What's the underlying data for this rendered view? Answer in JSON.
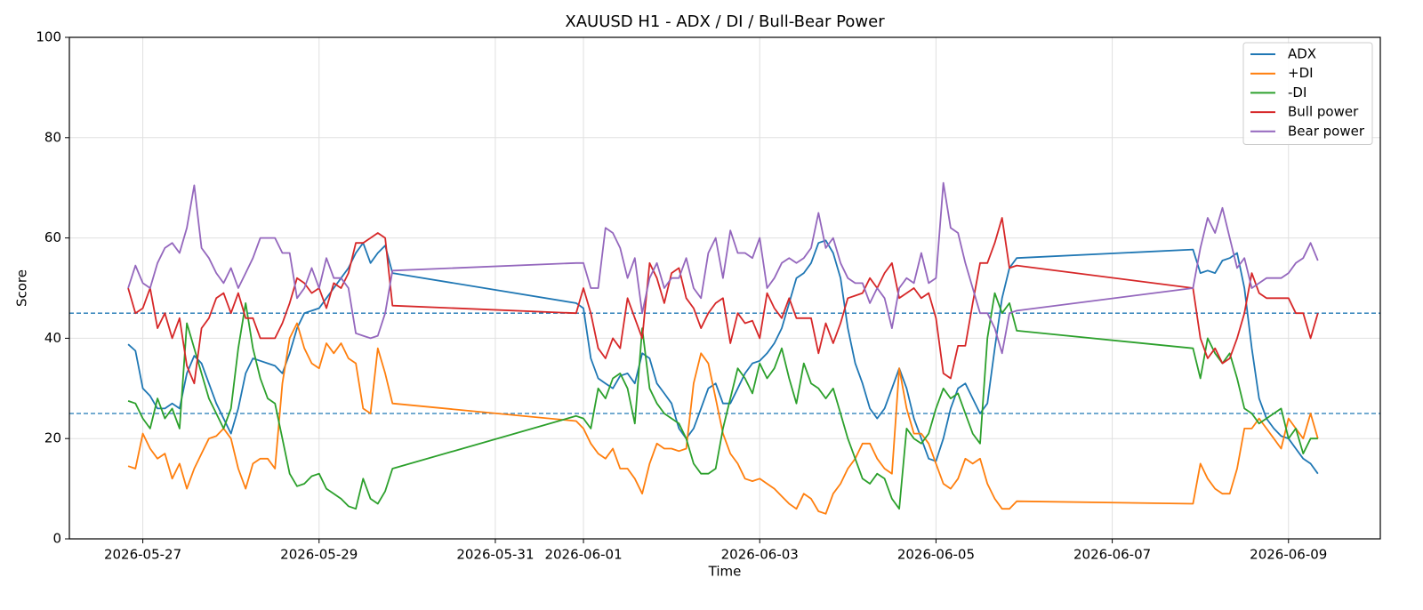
{
  "chart_data": {
    "type": "line",
    "title": "XAUUSD H1 - ADX / DI / Bull-Bear Power",
    "xlabel": "Time",
    "ylabel": "Score",
    "ylim": [
      0,
      100
    ],
    "yticks": [
      0,
      20,
      40,
      60,
      80,
      100
    ],
    "xlim": [
      "2026-05-26 04:00",
      "2026-06-10 01:00"
    ],
    "xticks": [
      "2026-05-27",
      "2026-05-29",
      "2026-05-31",
      "2026-06-01",
      "2026-06-03",
      "2026-06-05",
      "2026-06-07",
      "2026-06-09"
    ],
    "grid": true,
    "legend": "upper right",
    "hlines": [
      45,
      25
    ],
    "hline_color": "#1f77b4",
    "x": [
      "2026-05-26 20:00",
      "2026-05-26 22:00",
      "2026-05-27 00:00",
      "2026-05-27 02:00",
      "2026-05-27 04:00",
      "2026-05-27 06:00",
      "2026-05-27 08:00",
      "2026-05-27 10:00",
      "2026-05-27 12:00",
      "2026-05-27 14:00",
      "2026-05-27 16:00",
      "2026-05-27 18:00",
      "2026-05-27 20:00",
      "2026-05-27 22:00",
      "2026-05-28 00:00",
      "2026-05-28 02:00",
      "2026-05-28 04:00",
      "2026-05-28 06:00",
      "2026-05-28 08:00",
      "2026-05-28 10:00",
      "2026-05-28 12:00",
      "2026-05-28 14:00",
      "2026-05-28 16:00",
      "2026-05-28 18:00",
      "2026-05-28 20:00",
      "2026-05-28 22:00",
      "2026-05-29 00:00",
      "2026-05-29 02:00",
      "2026-05-29 04:00",
      "2026-05-29 06:00",
      "2026-05-29 08:00",
      "2026-05-29 10:00",
      "2026-05-29 12:00",
      "2026-05-29 14:00",
      "2026-05-29 16:00",
      "2026-05-29 18:00",
      "2026-05-29 20:00",
      "2026-05-31 22:00",
      "2026-06-01 00:00",
      "2026-06-01 02:00",
      "2026-06-01 04:00",
      "2026-06-01 06:00",
      "2026-06-01 08:00",
      "2026-06-01 10:00",
      "2026-06-01 12:00",
      "2026-06-01 14:00",
      "2026-06-01 16:00",
      "2026-06-01 18:00",
      "2026-06-01 20:00",
      "2026-06-01 22:00",
      "2026-06-02 00:00",
      "2026-06-02 02:00",
      "2026-06-02 04:00",
      "2026-06-02 06:00",
      "2026-06-02 08:00",
      "2026-06-02 10:00",
      "2026-06-02 12:00",
      "2026-06-02 14:00",
      "2026-06-02 16:00",
      "2026-06-02 18:00",
      "2026-06-02 20:00",
      "2026-06-02 22:00",
      "2026-06-03 00:00",
      "2026-06-03 02:00",
      "2026-06-03 04:00",
      "2026-06-03 06:00",
      "2026-06-03 08:00",
      "2026-06-03 10:00",
      "2026-06-03 12:00",
      "2026-06-03 14:00",
      "2026-06-03 16:00",
      "2026-06-03 18:00",
      "2026-06-03 20:00",
      "2026-06-03 22:00",
      "2026-06-04 00:00",
      "2026-06-04 02:00",
      "2026-06-04 04:00",
      "2026-06-04 06:00",
      "2026-06-04 08:00",
      "2026-06-04 10:00",
      "2026-06-04 12:00",
      "2026-06-04 14:00",
      "2026-06-04 16:00",
      "2026-06-04 18:00",
      "2026-06-04 20:00",
      "2026-06-04 22:00",
      "2026-06-05 00:00",
      "2026-06-05 02:00",
      "2026-06-05 04:00",
      "2026-06-05 06:00",
      "2026-06-05 08:00",
      "2026-06-05 10:00",
      "2026-06-05 12:00",
      "2026-06-05 14:00",
      "2026-06-05 16:00",
      "2026-06-05 18:00",
      "2026-06-05 20:00",
      "2026-06-05 22:00",
      "2026-06-07 22:00",
      "2026-06-08 00:00",
      "2026-06-08 02:00",
      "2026-06-08 04:00",
      "2026-06-08 06:00",
      "2026-06-08 08:00",
      "2026-06-08 10:00",
      "2026-06-08 12:00",
      "2026-06-08 14:00",
      "2026-06-08 16:00",
      "2026-06-08 18:00",
      "2026-06-08 20:00",
      "2026-06-08 22:00",
      "2026-06-09 00:00",
      "2026-06-09 02:00",
      "2026-06-09 04:00",
      "2026-06-09 06:00",
      "2026-06-09 08:00"
    ],
    "series": [
      {
        "name": "ADX",
        "color": "#1f77b4",
        "values": [
          38.8,
          37.5,
          30,
          28.5,
          26,
          26,
          27,
          26,
          33,
          36.5,
          35,
          31,
          27,
          24,
          21,
          26,
          33,
          36,
          35.5,
          35,
          34.5,
          33,
          37,
          42,
          45,
          45.5,
          46,
          48,
          50,
          52,
          54,
          57,
          59,
          55,
          57,
          58.5,
          53,
          47,
          46,
          36,
          32,
          31,
          30,
          32.5,
          33,
          31,
          37,
          36,
          31,
          29,
          27,
          22,
          20,
          22,
          26,
          30,
          31,
          27,
          27,
          30,
          33,
          35,
          35.5,
          37,
          39,
          42,
          47,
          52,
          53,
          55,
          59,
          59.5,
          57,
          52,
          42,
          35,
          31,
          26,
          24,
          26,
          30,
          34,
          30,
          24,
          20,
          16,
          15.5,
          20,
          26,
          30,
          31,
          28,
          25,
          27,
          38,
          48,
          54,
          56,
          57.7,
          53,
          53.5,
          53,
          55.5,
          56,
          57,
          50,
          38,
          28,
          24,
          22,
          20.5,
          20,
          18,
          16,
          15,
          13
        ]
      },
      {
        "name": "+DI",
        "color": "#ff7f0e",
        "values": [
          14.5,
          14,
          21,
          18,
          16,
          17,
          12,
          15,
          10,
          14,
          17,
          20,
          20.5,
          22,
          20,
          14,
          10,
          15,
          16,
          16,
          14,
          31,
          40,
          43,
          38,
          35,
          34,
          39,
          37,
          39,
          36,
          35,
          26,
          25,
          38,
          33,
          27,
          23.5,
          22,
          19,
          17,
          16,
          18,
          14,
          14,
          12,
          9,
          15,
          19,
          18,
          18,
          17.5,
          18,
          31,
          37,
          35,
          28,
          21,
          17,
          15,
          12,
          11.5,
          12,
          11,
          10,
          8.5,
          7,
          6,
          9,
          8,
          5.5,
          5,
          9,
          11,
          14,
          16,
          19,
          19,
          16,
          14,
          13,
          34,
          26,
          21,
          21,
          19,
          15,
          11,
          10,
          12,
          16,
          15,
          16,
          11,
          8,
          6,
          6,
          7.5,
          7,
          15,
          12,
          10,
          9,
          9,
          14,
          22,
          22,
          24,
          22,
          20,
          18,
          24,
          22,
          20,
          25,
          20
        ]
      },
      {
        "name": "-DI",
        "color": "#2ca02c",
        "values": [
          27.5,
          27,
          24,
          22,
          28,
          24,
          26,
          22,
          43,
          38,
          33,
          28,
          25,
          22,
          26,
          38,
          47,
          38,
          32,
          28,
          27,
          20,
          13,
          10.5,
          11,
          12.5,
          13,
          10,
          9,
          8,
          6.5,
          6,
          12,
          8,
          7,
          9.5,
          14,
          24.5,
          24,
          22,
          30,
          28,
          32,
          33,
          30,
          23,
          42,
          30,
          27,
          25,
          24,
          23,
          20,
          15,
          13,
          13,
          14,
          22,
          28,
          34,
          32,
          29,
          35,
          32,
          34,
          38,
          32,
          27,
          35,
          31,
          30,
          28,
          30,
          25,
          20,
          16,
          12,
          11,
          13,
          12,
          8,
          6,
          22,
          20,
          19,
          21,
          26,
          30,
          28,
          29,
          25,
          21,
          19,
          40,
          49,
          45,
          47,
          41.5,
          38,
          32,
          40,
          37,
          35,
          37,
          32,
          26,
          25,
          23,
          24,
          25,
          26,
          20,
          22,
          17,
          20,
          20
        ]
      },
      {
        "name": "Bull power",
        "color": "#d62728",
        "values": [
          50,
          45,
          46,
          50,
          42,
          45,
          40,
          44,
          34.5,
          31,
          42,
          44,
          48,
          49,
          45,
          49,
          44,
          44,
          40,
          40,
          40,
          43,
          47,
          52,
          51,
          49,
          50,
          46,
          51,
          50,
          53,
          59,
          59,
          60,
          61,
          60,
          46.5,
          45,
          50,
          45,
          38,
          36,
          40,
          38,
          48,
          44,
          40,
          55,
          52,
          47,
          53,
          54,
          48,
          46,
          42,
          45,
          47,
          48,
          39,
          45,
          43,
          43.5,
          40,
          49,
          46,
          44,
          48,
          44,
          44,
          44,
          37,
          43,
          39,
          43,
          48,
          48.5,
          49,
          52,
          50,
          53,
          55,
          48,
          49,
          50,
          48,
          49,
          44,
          33,
          32,
          38.5,
          38.5,
          47,
          55,
          55,
          59,
          64,
          54,
          54.5,
          50,
          40,
          36,
          38,
          35,
          36,
          40,
          45,
          53,
          49,
          48,
          48,
          48,
          48,
          45,
          45,
          40,
          45
        ]
      },
      {
        "name": "Bear power",
        "color": "#9467bd",
        "values": [
          50,
          54.5,
          51,
          50,
          55,
          58,
          59,
          57,
          62,
          70.5,
          58,
          56,
          53,
          51,
          54,
          50,
          53,
          56,
          60,
          60,
          60,
          57,
          57,
          48,
          50,
          54,
          50,
          56,
          52,
          52,
          50,
          41,
          40.5,
          40,
          40.5,
          45,
          53.5,
          55,
          55,
          50,
          50,
          62,
          61,
          58,
          52,
          56,
          45,
          52,
          55,
          50,
          52,
          52,
          56,
          50,
          48,
          57,
          60,
          52,
          61.5,
          57,
          57,
          56,
          60,
          50,
          52,
          55,
          56,
          55,
          56,
          58,
          65,
          58,
          60,
          55,
          52,
          51,
          51,
          47,
          50,
          48,
          42,
          50,
          52,
          51,
          57,
          51,
          52,
          71,
          62,
          61,
          55,
          50,
          45,
          45,
          42,
          37,
          45,
          45.5,
          50,
          58,
          64,
          61,
          66,
          60,
          54,
          56,
          50,
          51,
          52,
          52,
          52,
          53,
          55,
          56,
          59,
          55.5
        ]
      }
    ]
  }
}
